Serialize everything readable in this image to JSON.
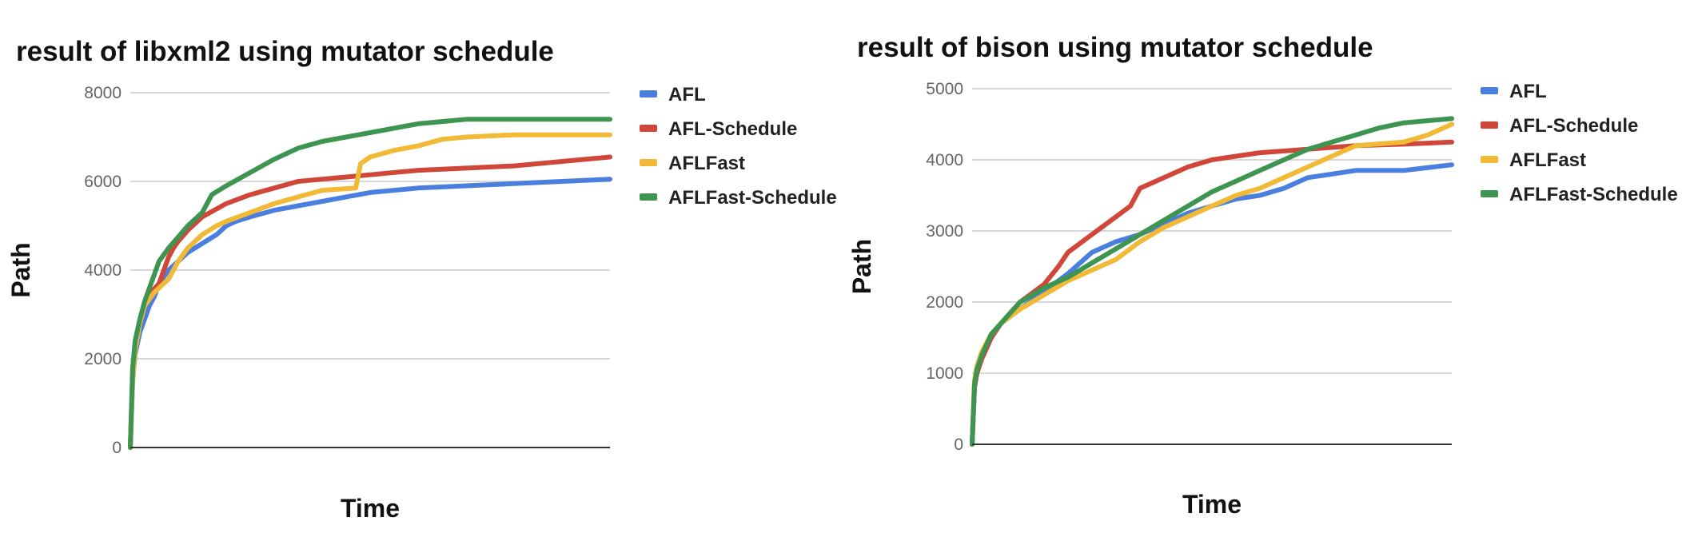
{
  "chart_data": [
    {
      "type": "line",
      "title": "result of libxml2 using mutator schedule",
      "xlabel": "Time",
      "ylabel": "Path",
      "ylim": [
        0,
        8000
      ],
      "yticks": [
        0,
        2000,
        4000,
        6000,
        8000
      ],
      "xlim": [
        0,
        1
      ],
      "grid": true,
      "legend": "right",
      "series": [
        {
          "name": "AFL",
          "color": "#4a7fe0",
          "x": [
            0,
            0.005,
            0.01,
            0.02,
            0.03,
            0.04,
            0.05,
            0.06,
            0.08,
            0.1,
            0.12,
            0.15,
            0.18,
            0.2,
            0.22,
            0.25,
            0.3,
            0.35,
            0.4,
            0.45,
            0.5,
            0.6,
            0.7,
            0.8,
            0.9,
            1.0
          ],
          "y": [
            0,
            1500,
            2100,
            2600,
            2900,
            3200,
            3400,
            3700,
            4000,
            4200,
            4400,
            4600,
            4800,
            5000,
            5100,
            5200,
            5350,
            5450,
            5550,
            5650,
            5750,
            5850,
            5900,
            5950,
            6000,
            6050
          ]
        },
        {
          "name": "AFL-Schedule",
          "color": "#d0473a",
          "x": [
            0,
            0.005,
            0.01,
            0.02,
            0.03,
            0.04,
            0.06,
            0.08,
            0.09,
            0.1,
            0.12,
            0.15,
            0.2,
            0.25,
            0.3,
            0.35,
            0.4,
            0.45,
            0.5,
            0.6,
            0.7,
            0.8,
            0.9,
            1.0
          ],
          "y": [
            0,
            1800,
            2300,
            2800,
            3200,
            3450,
            3700,
            4300,
            4500,
            4650,
            4900,
            5200,
            5500,
            5700,
            5850,
            6000,
            6050,
            6100,
            6150,
            6250,
            6300,
            6350,
            6450,
            6550
          ]
        },
        {
          "name": "AFLFast",
          "color": "#f2b937",
          "x": [
            0,
            0.005,
            0.01,
            0.02,
            0.03,
            0.05,
            0.08,
            0.1,
            0.12,
            0.15,
            0.18,
            0.2,
            0.25,
            0.3,
            0.35,
            0.4,
            0.47,
            0.48,
            0.5,
            0.55,
            0.6,
            0.65,
            0.7,
            0.8,
            0.9,
            1.0
          ],
          "y": [
            0,
            1500,
            2200,
            2800,
            3200,
            3500,
            3800,
            4200,
            4500,
            4800,
            5000,
            5100,
            5300,
            5500,
            5650,
            5800,
            5850,
            6400,
            6550,
            6700,
            6800,
            6950,
            7000,
            7050,
            7050,
            7050
          ]
        },
        {
          "name": "AFLFast-Schedule",
          "color": "#3e9552",
          "x": [
            0,
            0.005,
            0.01,
            0.02,
            0.03,
            0.04,
            0.05,
            0.06,
            0.08,
            0.1,
            0.12,
            0.15,
            0.17,
            0.2,
            0.25,
            0.3,
            0.35,
            0.4,
            0.45,
            0.5,
            0.55,
            0.6,
            0.65,
            0.7,
            0.8,
            0.9,
            1.0
          ],
          "y": [
            0,
            1800,
            2400,
            2900,
            3300,
            3600,
            3900,
            4200,
            4500,
            4750,
            5000,
            5300,
            5700,
            5900,
            6200,
            6500,
            6750,
            6900,
            7000,
            7100,
            7200,
            7300,
            7350,
            7400,
            7400,
            7400,
            7400
          ]
        }
      ]
    },
    {
      "type": "line",
      "title": "result of bison using mutator schedule",
      "xlabel": "Time",
      "ylabel": "Path",
      "ylim": [
        0,
        5000
      ],
      "yticks": [
        0,
        1000,
        2000,
        3000,
        4000,
        5000
      ],
      "xlim": [
        0,
        1
      ],
      "grid": true,
      "legend": "right",
      "series": [
        {
          "name": "AFL",
          "color": "#4a7fe0",
          "x": [
            0,
            0.005,
            0.01,
            0.02,
            0.04,
            0.06,
            0.08,
            0.1,
            0.15,
            0.2,
            0.25,
            0.3,
            0.35,
            0.4,
            0.45,
            0.5,
            0.55,
            0.6,
            0.65,
            0.7,
            0.75,
            0.8,
            0.9,
            1.0
          ],
          "y": [
            0,
            800,
            1000,
            1200,
            1500,
            1700,
            1800,
            1900,
            2150,
            2400,
            2700,
            2850,
            2950,
            3100,
            3250,
            3350,
            3450,
            3500,
            3600,
            3750,
            3800,
            3850,
            3850,
            3930
          ]
        },
        {
          "name": "AFL-Schedule",
          "color": "#d0473a",
          "x": [
            0,
            0.005,
            0.01,
            0.02,
            0.04,
            0.06,
            0.08,
            0.1,
            0.12,
            0.15,
            0.18,
            0.2,
            0.25,
            0.3,
            0.33,
            0.35,
            0.4,
            0.45,
            0.5,
            0.55,
            0.6,
            0.7,
            0.8,
            0.9,
            1.0
          ],
          "y": [
            0,
            800,
            1000,
            1200,
            1500,
            1700,
            1850,
            2000,
            2100,
            2250,
            2500,
            2700,
            2950,
            3200,
            3350,
            3600,
            3750,
            3900,
            4000,
            4050,
            4100,
            4150,
            4200,
            4220,
            4250
          ]
        },
        {
          "name": "AFLFast",
          "color": "#f2b937",
          "x": [
            0,
            0.005,
            0.01,
            0.02,
            0.04,
            0.06,
            0.08,
            0.1,
            0.15,
            0.2,
            0.25,
            0.3,
            0.35,
            0.4,
            0.45,
            0.5,
            0.55,
            0.6,
            0.65,
            0.7,
            0.75,
            0.8,
            0.9,
            0.95,
            1.0
          ],
          "y": [
            0,
            900,
            1100,
            1300,
            1550,
            1700,
            1800,
            1900,
            2100,
            2300,
            2450,
            2600,
            2850,
            3050,
            3200,
            3350,
            3500,
            3600,
            3750,
            3900,
            4050,
            4200,
            4250,
            4350,
            4500
          ]
        },
        {
          "name": "AFLFast-Schedule",
          "color": "#3e9552",
          "x": [
            0,
            0.005,
            0.01,
            0.02,
            0.04,
            0.06,
            0.08,
            0.1,
            0.15,
            0.2,
            0.25,
            0.3,
            0.35,
            0.4,
            0.45,
            0.5,
            0.55,
            0.6,
            0.65,
            0.7,
            0.75,
            0.8,
            0.85,
            0.9,
            1.0
          ],
          "y": [
            0,
            850,
            1050,
            1250,
            1550,
            1700,
            1850,
            2000,
            2200,
            2350,
            2550,
            2750,
            2950,
            3150,
            3350,
            3550,
            3700,
            3850,
            4000,
            4150,
            4250,
            4350,
            4450,
            4520,
            4580
          ]
        }
      ]
    }
  ]
}
